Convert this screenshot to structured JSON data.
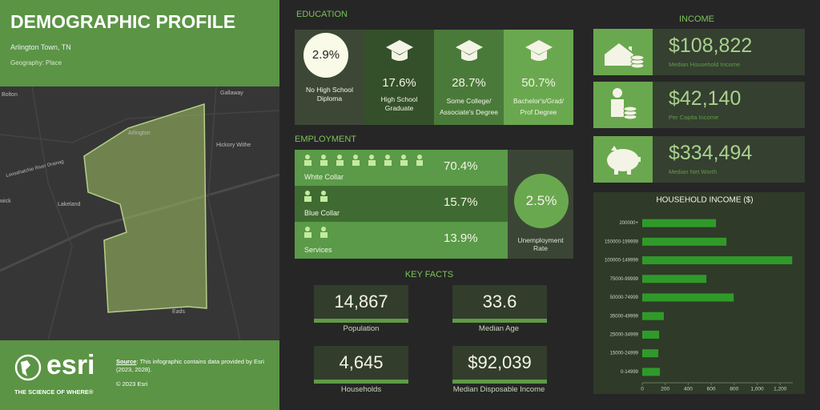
{
  "header": {
    "title": "DEMOGRAPHIC PROFILE",
    "location": "Arlington Town, TN",
    "geography": "Geography: Place"
  },
  "map": {
    "labels": [
      "Bolton",
      "Gallaway",
      "Arlington",
      "Hickory Withe",
      "Lakeland",
      "Eads",
      "wick",
      "Loosahatchie River Drainag"
    ]
  },
  "footer": {
    "brand": "esri",
    "tagline": "THE SCIENCE OF WHERE®",
    "source_label": "Source",
    "source_text": ": This infographic contains data provided by Esri (2023, 2028).",
    "copyright": "© 2023 Esri"
  },
  "education": {
    "title": "EDUCATION",
    "items": [
      {
        "value": "2.9%",
        "label": "No High School Diploma"
      },
      {
        "value": "17.6%",
        "label": "High School Graduate"
      },
      {
        "value": "28.7%",
        "label": "Some College/ Associate's Degree"
      },
      {
        "value": "50.7%",
        "label": "Bachelor's/Grad/ Prof Degree"
      }
    ]
  },
  "employment": {
    "title": "EMPLOYMENT",
    "rows": [
      {
        "label": "White Collar",
        "value": "70.4%"
      },
      {
        "label": "Blue Collar",
        "value": "15.7%"
      },
      {
        "label": "Services",
        "value": "13.9%"
      }
    ],
    "unemployment": {
      "value": "2.5%",
      "label": "Unemployment Rate"
    }
  },
  "key_facts": {
    "title": "KEY FACTS",
    "items": [
      {
        "value": "14,867",
        "label": "Population"
      },
      {
        "value": "33.6",
        "label": "Median Age"
      },
      {
        "value": "4,645",
        "label": "Households"
      },
      {
        "value": "$92,039",
        "label": "Median Disposable Income"
      }
    ]
  },
  "income": {
    "title": "INCOME",
    "items": [
      {
        "value": "$108,822",
        "label": "Median Household Income"
      },
      {
        "value": "$42,140",
        "label": "Per Capita Income"
      },
      {
        "value": "$334,494",
        "label": "Median Net Worth"
      }
    ]
  },
  "chart_data": {
    "type": "hbar",
    "title": "HOUSEHOLD INCOME ($)",
    "categories": [
      "200000+",
      "150000-199999",
      "100000-149999",
      "75000-99999",
      "50000-74999",
      "35000-49999",
      "25000-34999",
      "15000-24999",
      "0-14999"
    ],
    "values": [
      642,
      733,
      1305,
      558,
      796,
      188,
      147,
      140,
      154
    ],
    "color": "#2f9a2a",
    "xlim": [
      0,
      1310
    ],
    "xticks": [
      0,
      200,
      400,
      600,
      800,
      {
        "value": 1000,
        "label": "1,000"
      },
      {
        "value": 1200,
        "label": "1,200"
      }
    ]
  }
}
